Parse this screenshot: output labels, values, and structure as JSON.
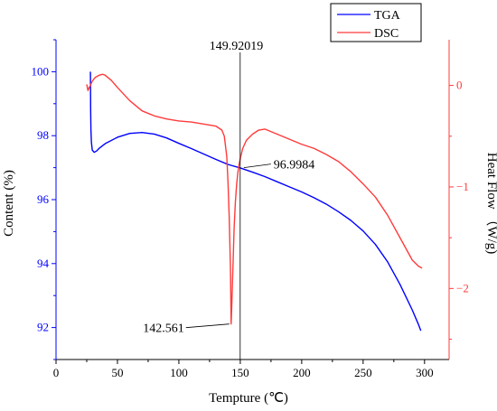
{
  "chart_data": {
    "type": "line",
    "xlabel": "Tempture (℃)",
    "ylabel_left": "Content (%)",
    "ylabel_right": "Heat Flow （W/g)",
    "xlim": [
      0,
      320
    ],
    "xticks": [
      0,
      50,
      100,
      150,
      200,
      250,
      300
    ],
    "ylim_left": [
      91,
      101
    ],
    "yticks_left": [
      92,
      94,
      96,
      98,
      100
    ],
    "ylim_right": [
      -2.7,
      0.45
    ],
    "yticks_right": [
      -2,
      -1,
      0
    ],
    "legend_position": "top-right",
    "colors": {
      "TGA": "#0000ff",
      "DSC": "#ff3b3b",
      "axis_left": "#0000ff",
      "axis_right": "#ff3b3b"
    },
    "series": [
      {
        "name": "TGA",
        "axis": "left",
        "x": [
          28,
          28.2,
          28.4,
          28.8,
          29.5,
          31,
          33,
          35,
          40,
          50,
          60,
          70,
          80,
          90,
          100,
          110,
          120,
          130,
          140,
          150,
          160,
          170,
          180,
          190,
          200,
          210,
          220,
          230,
          240,
          250,
          260,
          270,
          280,
          290,
          295,
          297
        ],
        "y": [
          100.0,
          98.8,
          98.2,
          97.8,
          97.55,
          97.48,
          97.52,
          97.6,
          97.75,
          97.95,
          98.07,
          98.1,
          98.05,
          97.93,
          97.76,
          97.6,
          97.43,
          97.26,
          97.1,
          96.99,
          96.86,
          96.72,
          96.56,
          96.4,
          96.24,
          96.06,
          95.86,
          95.62,
          95.35,
          95.02,
          94.6,
          94.05,
          93.35,
          92.55,
          92.1,
          91.9
        ]
      },
      {
        "name": "DSC",
        "axis": "right",
        "x": [
          25,
          26,
          27,
          28,
          29,
          30,
          32,
          35,
          38,
          40,
          45,
          50,
          60,
          70,
          80,
          90,
          100,
          110,
          120,
          130,
          135,
          137,
          139,
          140,
          141,
          142,
          142.561,
          143,
          144,
          145,
          146,
          147,
          148,
          149,
          150,
          152,
          155,
          160,
          165,
          170,
          180,
          190,
          200,
          210,
          220,
          230,
          240,
          250,
          260,
          270,
          280,
          290,
          295,
          298
        ],
        "y": [
          0.01,
          -0.05,
          -0.02,
          0.0,
          0.03,
          0.05,
          0.08,
          0.1,
          0.11,
          0.1,
          0.05,
          -0.02,
          -0.15,
          -0.25,
          -0.3,
          -0.33,
          -0.35,
          -0.36,
          -0.38,
          -0.4,
          -0.44,
          -0.5,
          -0.7,
          -0.95,
          -1.3,
          -1.8,
          -2.35,
          -2.2,
          -1.8,
          -1.4,
          -1.15,
          -0.98,
          -0.86,
          -0.78,
          -0.72,
          -0.62,
          -0.54,
          -0.48,
          -0.44,
          -0.43,
          -0.48,
          -0.53,
          -0.58,
          -0.62,
          -0.68,
          -0.75,
          -0.85,
          -0.97,
          -1.1,
          -1.28,
          -1.5,
          -1.72,
          -1.78,
          -1.8
        ]
      }
    ],
    "vline_x": 149.92019,
    "annotations": [
      {
        "id": "vline",
        "text": "149.92019"
      },
      {
        "id": "tga_point",
        "text": "96.9984",
        "x": 149.92019,
        "y": 96.9984,
        "axis": "left"
      },
      {
        "id": "dsc_min",
        "text": "142.561",
        "x": 142.561,
        "y": -2.35,
        "axis": "right"
      }
    ]
  }
}
